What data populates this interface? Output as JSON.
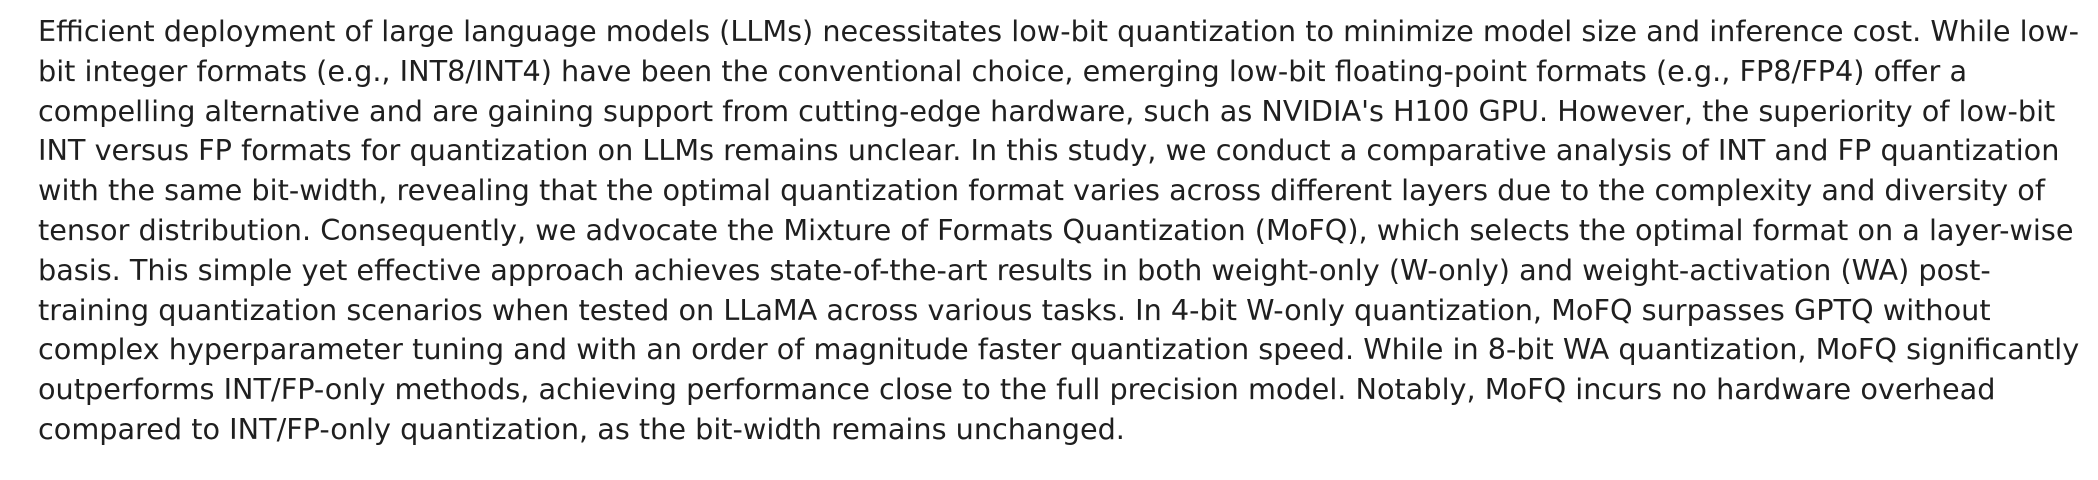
{
  "abstract": {
    "text": "Efficient deployment of large language models (LLMs) necessitates low-bit quantization to minimize model size and inference cost. While low-bit integer formats (e.g., INT8/INT4) have been the conventional choice, emerging low-bit floating-point formats (e.g., FP8/FP4) offer a compelling alternative and are gaining support from cutting-edge hardware, such as NVIDIA's H100 GPU. However, the superiority of low-bit INT versus FP formats for quantization on LLMs remains unclear. In this study, we conduct a comparative analysis of INT and FP quantization with the same bit-width, revealing that the optimal quantization format varies across different layers due to the complexity and diversity of tensor distribution. Consequently, we advocate the Mixture of Formats Quantization (MoFQ), which selects the optimal format on a layer-wise basis. This simple yet effective approach achieves state-of-the-art results in both weight-only (W-only) and weight-activation (WA) post-training quantization scenarios when tested on LLaMA across various tasks. In 4-bit W-only quantization, MoFQ surpasses GPTQ without complex hyperparameter tuning and with an order of magnitude faster quantization speed. While in 8-bit WA quantization, MoFQ significantly outperforms INT/FP-only methods, achieving performance close to the full precision model. Notably, MoFQ incurs no hardware overhead compared to INT/FP-only quantization, as the bit-width remains unchanged."
  }
}
